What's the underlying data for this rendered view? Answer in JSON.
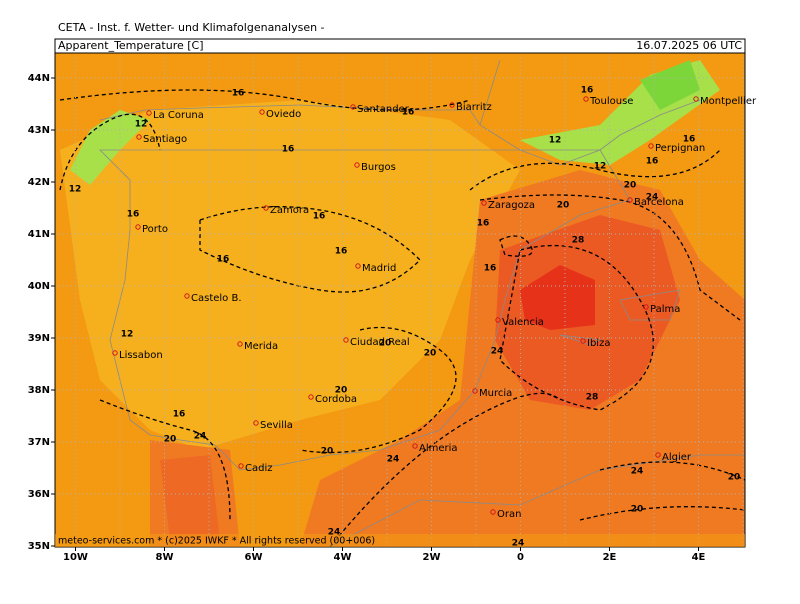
{
  "header": {
    "institute": "CETA - Inst. f. Wetter- und Klimafolgenanalysen -",
    "field": "Apparent_Temperature [C]",
    "valid": "16.07.2025 06 UTC"
  },
  "footer": "meteo-services.com * (c)2025 IWKF * All rights reserved (00+006)",
  "lat_labels": [
    "44N",
    "43N",
    "42N",
    "41N",
    "40N",
    "39N",
    "38N",
    "37N",
    "36N",
    "35N"
  ],
  "lon_labels": [
    "10W",
    "8W",
    "6W",
    "4W",
    "2W",
    "0",
    "2E",
    "4E"
  ],
  "cities": [
    "La Coruna",
    "Oviedo",
    "Santander",
    "Biarritz",
    "Toulouse",
    "Montpellier",
    "Santiago",
    "Burgos",
    "Perpignan",
    "Zamora",
    "Zaragoza",
    "Barcelona",
    "Porto",
    "Madrid",
    "Castelo B.",
    "Valencia",
    "Palma",
    "Lissabon",
    "Merida",
    "Ciudad Real",
    "Ibiza",
    "Murcia",
    "Cordoba",
    "Sevilla",
    "Almeria",
    "Cadiz",
    "Algier",
    "Oran"
  ],
  "contour_labels": [
    "16",
    "16",
    "12",
    "16",
    "12",
    "16",
    "16",
    "16",
    "12",
    "12",
    "20",
    "24",
    "16",
    "16",
    "16",
    "20",
    "28",
    "16",
    "16",
    "16",
    "12",
    "20",
    "20",
    "24",
    "20",
    "28",
    "16",
    "20",
    "24",
    "20",
    "24",
    "24",
    "20",
    "20",
    "24",
    "24"
  ]
}
